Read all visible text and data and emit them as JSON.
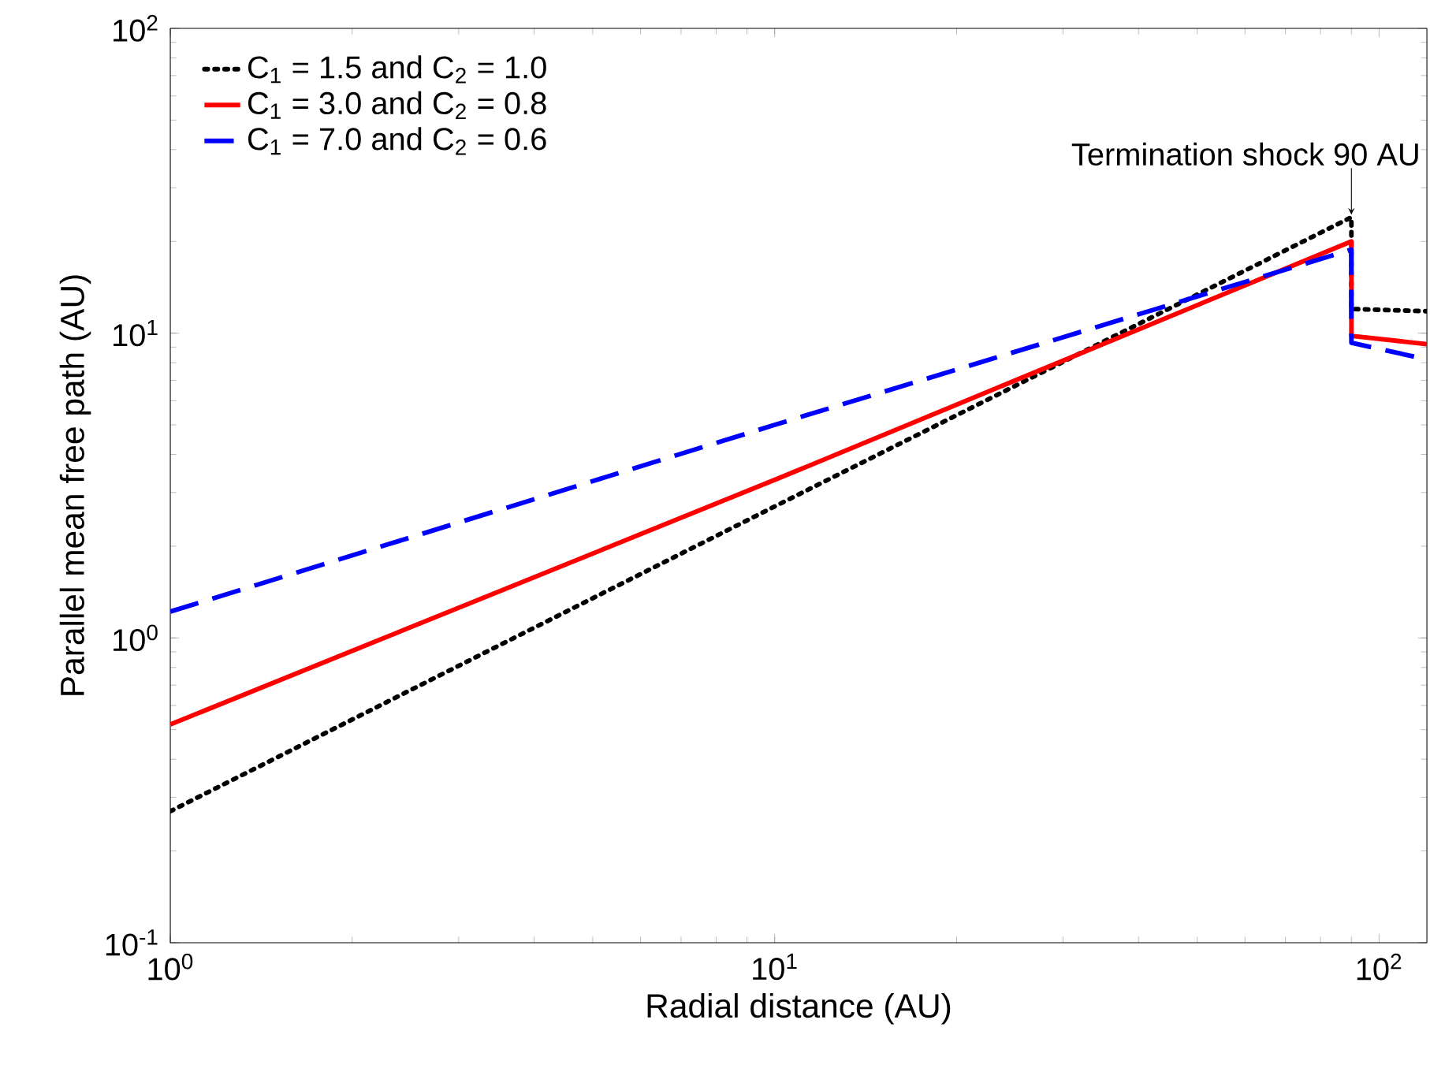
{
  "chart_data": {
    "type": "line",
    "xlabel": "Radial distance (AU)",
    "ylabel": "Parallel mean free path (AU)",
    "log": "xy",
    "xlim": [
      1,
      120
    ],
    "ylim": [
      0.1,
      100
    ],
    "xticks": [
      {
        "value": 1,
        "label": "10$^{0}$"
      },
      {
        "value": 10,
        "label": "10$^{1}$"
      },
      {
        "value": 100,
        "label": "10$^{2}$"
      }
    ],
    "yticks": [
      {
        "value": 0.1,
        "label": "10$^{-1}$"
      },
      {
        "value": 1,
        "label": "10$^{0}$"
      },
      {
        "value": 10,
        "label": "10$^{1}$"
      },
      {
        "value": 100,
        "label": "10$^{2}$"
      }
    ],
    "grid": false,
    "legend": "top left",
    "marker": "none",
    "series": [
      {
        "name": "C$_{1}$ = 1.5 and C$_{2}$ = 1.0",
        "color": "#000000",
        "line_style": "dotted",
        "x": [
          1,
          10,
          90,
          90,
          120
        ],
        "values": [
          0.27,
          2.7,
          24,
          12,
          11.8
        ]
      },
      {
        "name": "C$_{1}$ = 3.0 and C$_{2}$ = 0.8",
        "color": "#ff0000",
        "line_style": "solid",
        "x": [
          1,
          10,
          90,
          90,
          120
        ],
        "values": [
          0.52,
          3.3,
          20,
          9.8,
          9.2
        ]
      },
      {
        "name": "C$_{1}$ = 7.0 and C$_{2}$ = 0.6",
        "color": "#0000ff",
        "line_style": "dashed",
        "x": [
          1,
          10,
          90,
          90,
          120
        ],
        "values": [
          1.22,
          5,
          18.8,
          9.3,
          8.2
        ]
      }
    ],
    "annotations": [
      {
        "text": "Termination shock 90 AU",
        "x": 90,
        "y": 24
      }
    ]
  }
}
